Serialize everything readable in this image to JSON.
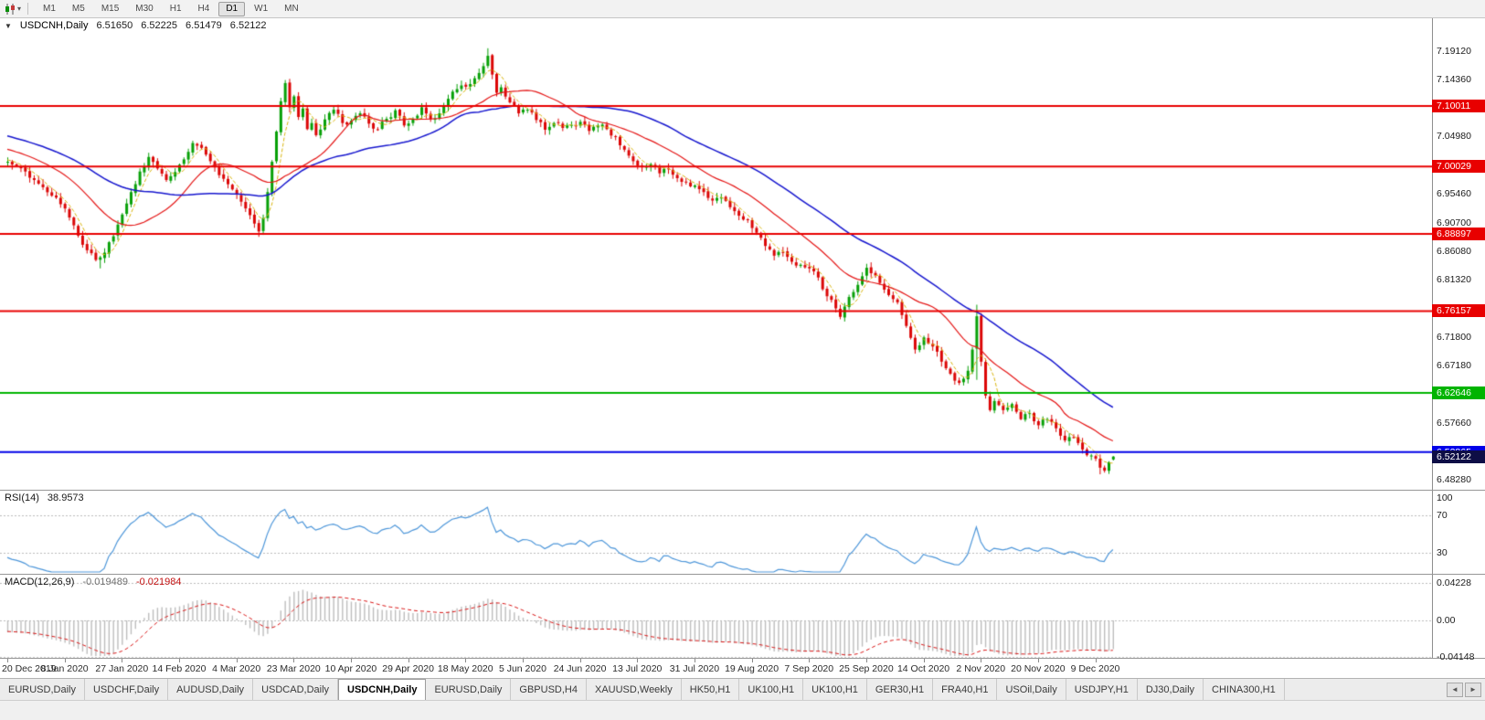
{
  "toolbar": {
    "timeframes": [
      "M1",
      "M5",
      "M15",
      "M30",
      "H1",
      "H4",
      "D1",
      "W1",
      "MN"
    ],
    "active_timeframe": "D1",
    "chart_type_icon": "candlestick-chart-icon",
    "dropdown_caret": "▾"
  },
  "main": {
    "collapse_icon": "▼",
    "symbol_label": "USDCNH,Daily",
    "open": "6.51650",
    "high": "6.52225",
    "low": "6.51479",
    "close": "6.52122",
    "axis_ticks": [
      "7.19120",
      "7.14360",
      "7.04980",
      "6.95460",
      "6.90700",
      "6.86080",
      "6.81320",
      "6.71800",
      "6.67180",
      "6.57660",
      "6.48280"
    ],
    "hlines": [
      {
        "price": 7.10011,
        "label": "7.10011",
        "color": "#E80000",
        "type": "resistance"
      },
      {
        "price": 7.00029,
        "label": "7.00029",
        "color": "#E80000",
        "type": "resistance"
      },
      {
        "price": 6.88897,
        "label": "6.88897",
        "color": "#E80000",
        "type": "resistance"
      },
      {
        "price": 6.76157,
        "label": "6.76157",
        "color": "#E80000",
        "type": "resistance"
      },
      {
        "price": 6.62646,
        "label": "6.62646",
        "color": "#00B400",
        "type": "level"
      },
      {
        "price": 6.52865,
        "label": "6.52865",
        "color": "#0000E8",
        "type": "support"
      }
    ],
    "current_price": {
      "value": 6.52122,
      "label": "6.52122",
      "badge_color": "#0E0E46"
    }
  },
  "rsi": {
    "label": "RSI(14)",
    "value": "38.9573",
    "axis_labels": [
      "100",
      "70",
      "30"
    ],
    "levels": [
      70,
      30
    ],
    "line_color": "#4D96D9"
  },
  "macd": {
    "label": "MACD(12,26,9)",
    "main_value": "-0.019489",
    "signal_value": "-0.021984",
    "axis_labels": [
      {
        "v": 0.04228,
        "label": "0.04228"
      },
      {
        "v": 0,
        "label": "0.00"
      },
      {
        "v": -0.04148,
        "label": "-0.04148"
      }
    ],
    "hist_color": "#BDBDBD",
    "signal_color": "#D81414"
  },
  "dates": [
    {
      "i": 0,
      "label": "20 Dec 2019"
    },
    {
      "i": 13,
      "label": "8 Jan 2020"
    },
    {
      "i": 26,
      "label": "27 Jan 2020"
    },
    {
      "i": 39,
      "label": "14 Feb 2020"
    },
    {
      "i": 52,
      "label": "4 Mar 2020"
    },
    {
      "i": 65,
      "label": "23 Mar 2020"
    },
    {
      "i": 78,
      "label": "10 Apr 2020"
    },
    {
      "i": 91,
      "label": "29 Apr 2020"
    },
    {
      "i": 104,
      "label": "18 May 2020"
    },
    {
      "i": 117,
      "label": "5 Jun 2020"
    },
    {
      "i": 130,
      "label": "24 Jun 2020"
    },
    {
      "i": 143,
      "label": "13 Jul 2020"
    },
    {
      "i": 156,
      "label": "31 Jul 2020"
    },
    {
      "i": 169,
      "label": "19 Aug 2020"
    },
    {
      "i": 182,
      "label": "7 Sep 2020"
    },
    {
      "i": 195,
      "label": "25 Sep 2020"
    },
    {
      "i": 208,
      "label": "14 Oct 2020"
    },
    {
      "i": 221,
      "label": "2 Nov 2020"
    },
    {
      "i": 234,
      "label": "20 Nov 2020"
    },
    {
      "i": 247,
      "label": "9 Dec 2020"
    }
  ],
  "tabs": {
    "items": [
      "EURUSD,Daily",
      "USDCHF,Daily",
      "AUDUSD,Daily",
      "USDCAD,Daily",
      "USDCNH,Daily",
      "EURUSD,Daily",
      "GBPUSD,H4",
      "XAUUSD,Weekly",
      "HK50,H1",
      "UK100,H1",
      "UK100,H1",
      "GER30,H1",
      "FRA40,H1",
      "USOil,Daily",
      "USDJPY,H1",
      "DJ30,Daily",
      "CHINA300,H1"
    ],
    "active_index": 4,
    "scroll_left_icon": "◄",
    "scroll_right_icon": "►"
  },
  "chart_data": {
    "type": "candlestick",
    "symbol": "USDCNH",
    "timeframe": "Daily",
    "title": "USDCNH,Daily",
    "y_range": [
      6.465,
      7.245
    ],
    "x_label_step_trading_days": 13,
    "pre_bars": 50,
    "pre_start": 7.105,
    "pre_step": -0.0019,
    "colors": {
      "bull": "#07A007",
      "bear": "#DB0606",
      "ma_fast": "#D8B40C",
      "ma_mid": "#E41616",
      "ma_slow": "#1616CE"
    },
    "moving_averages": [
      {
        "period": 5,
        "color": "#D8B40C",
        "style": "dashed"
      },
      {
        "period": 20,
        "color": "#E41616",
        "style": "solid"
      },
      {
        "period": 44,
        "color": "#1616CE",
        "style": "solid"
      }
    ],
    "indicators": {
      "rsi": {
        "period": 14,
        "last": 38.9573
      },
      "macd": {
        "fast": 12,
        "slow": 26,
        "signal": 9,
        "last": -0.019489,
        "signal_last": -0.021984
      }
    },
    "close_anchors": [
      [
        0,
        7.008
      ],
      [
        2,
        7.001
      ],
      [
        4,
        6.992
      ],
      [
        6,
        6.978
      ],
      [
        8,
        6.966
      ],
      [
        10,
        6.952
      ],
      [
        12,
        6.938
      ],
      [
        14,
        6.916
      ],
      [
        16,
        6.886
      ],
      [
        18,
        6.862
      ],
      [
        20,
        6.846
      ],
      [
        22,
        6.858
      ],
      [
        24,
        6.885
      ],
      [
        26,
        6.921
      ],
      [
        28,
        6.958
      ],
      [
        30,
        6.992
      ],
      [
        32,
        7.016
      ],
      [
        34,
        6.997
      ],
      [
        36,
        6.978
      ],
      [
        38,
        6.991
      ],
      [
        40,
        7.012
      ],
      [
        42,
        7.039
      ],
      [
        44,
        7.031
      ],
      [
        46,
        7.009
      ],
      [
        48,
        6.986
      ],
      [
        50,
        6.971
      ],
      [
        52,
        6.954
      ],
      [
        54,
        6.931
      ],
      [
        56,
        6.906
      ],
      [
        57,
        6.893
      ],
      [
        58,
        6.915
      ],
      [
        59,
        6.958
      ],
      [
        60,
        7.008
      ],
      [
        61,
        7.058
      ],
      [
        62,
        7.108
      ],
      [
        63,
        7.138
      ],
      [
        64,
        7.098
      ],
      [
        65,
        7.116
      ],
      [
        66,
        7.082
      ],
      [
        67,
        7.096
      ],
      [
        68,
        7.062
      ],
      [
        69,
        7.072
      ],
      [
        70,
        7.052
      ],
      [
        72,
        7.078
      ],
      [
        74,
        7.094
      ],
      [
        76,
        7.072
      ],
      [
        78,
        7.076
      ],
      [
        80,
        7.088
      ],
      [
        82,
        7.071
      ],
      [
        84,
        7.061
      ],
      [
        86,
        7.079
      ],
      [
        88,
        7.093
      ],
      [
        90,
        7.068
      ],
      [
        92,
        7.079
      ],
      [
        94,
        7.098
      ],
      [
        96,
        7.078
      ],
      [
        98,
        7.088
      ],
      [
        100,
        7.112
      ],
      [
        102,
        7.128
      ],
      [
        104,
        7.132
      ],
      [
        106,
        7.146
      ],
      [
        108,
        7.166
      ],
      [
        109,
        7.183
      ],
      [
        110,
        7.152
      ],
      [
        111,
        7.122
      ],
      [
        112,
        7.131
      ],
      [
        114,
        7.106
      ],
      [
        116,
        7.088
      ],
      [
        118,
        7.094
      ],
      [
        120,
        7.077
      ],
      [
        122,
        7.061
      ],
      [
        124,
        7.072
      ],
      [
        126,
        7.064
      ],
      [
        128,
        7.069
      ],
      [
        130,
        7.074
      ],
      [
        132,
        7.059
      ],
      [
        134,
        7.068
      ],
      [
        136,
        7.062
      ],
      [
        138,
        7.049
      ],
      [
        140,
        7.028
      ],
      [
        142,
        7.009
      ],
      [
        144,
        6.999
      ],
      [
        146,
        7.004
      ],
      [
        148,
        6.989
      ],
      [
        150,
        6.996
      ],
      [
        152,
        6.981
      ],
      [
        154,
        6.974
      ],
      [
        156,
        6.969
      ],
      [
        158,
        6.958
      ],
      [
        160,
        6.944
      ],
      [
        162,
        6.949
      ],
      [
        164,
        6.933
      ],
      [
        166,
        6.919
      ],
      [
        168,
        6.913
      ],
      [
        170,
        6.891
      ],
      [
        172,
        6.869
      ],
      [
        174,
        6.853
      ],
      [
        176,
        6.859
      ],
      [
        178,
        6.843
      ],
      [
        180,
        6.838
      ],
      [
        182,
        6.832
      ],
      [
        184,
        6.817
      ],
      [
        186,
        6.786
      ],
      [
        188,
        6.766
      ],
      [
        189,
        6.752
      ],
      [
        190,
        6.769
      ],
      [
        192,
        6.793
      ],
      [
        194,
        6.819
      ],
      [
        195,
        6.833
      ],
      [
        196,
        6.824
      ],
      [
        198,
        6.808
      ],
      [
        200,
        6.788
      ],
      [
        202,
        6.776
      ],
      [
        204,
        6.737
      ],
      [
        206,
        6.698
      ],
      [
        208,
        6.718
      ],
      [
        210,
        6.703
      ],
      [
        212,
        6.678
      ],
      [
        214,
        6.658
      ],
      [
        216,
        6.643
      ],
      [
        218,
        6.663
      ],
      [
        219,
        6.698
      ],
      [
        220,
        6.753
      ],
      [
        221,
        6.678
      ],
      [
        222,
        6.622
      ],
      [
        223,
        6.598
      ],
      [
        224,
        6.613
      ],
      [
        226,
        6.598
      ],
      [
        228,
        6.608
      ],
      [
        230,
        6.583
      ],
      [
        232,
        6.593
      ],
      [
        234,
        6.573
      ],
      [
        236,
        6.583
      ],
      [
        238,
        6.568
      ],
      [
        240,
        6.548
      ],
      [
        242,
        6.553
      ],
      [
        244,
        6.533
      ],
      [
        246,
        6.523
      ],
      [
        247,
        6.518
      ],
      [
        248,
        6.503
      ],
      [
        249,
        6.498
      ],
      [
        250,
        6.512
      ],
      [
        251,
        6.52122
      ]
    ],
    "wick_overrides": {
      "21": {
        "low": 6.832
      },
      "57": {
        "low": 6.884
      },
      "109": {
        "high": 7.1955
      },
      "189": {
        "low": 6.748
      },
      "220": {
        "high": 6.772,
        "low": 6.648
      },
      "248": {
        "low": 6.492
      },
      "251": {
        "open": 6.5165,
        "high": 6.52225,
        "low": 6.51479,
        "close": 6.52122
      }
    }
  }
}
